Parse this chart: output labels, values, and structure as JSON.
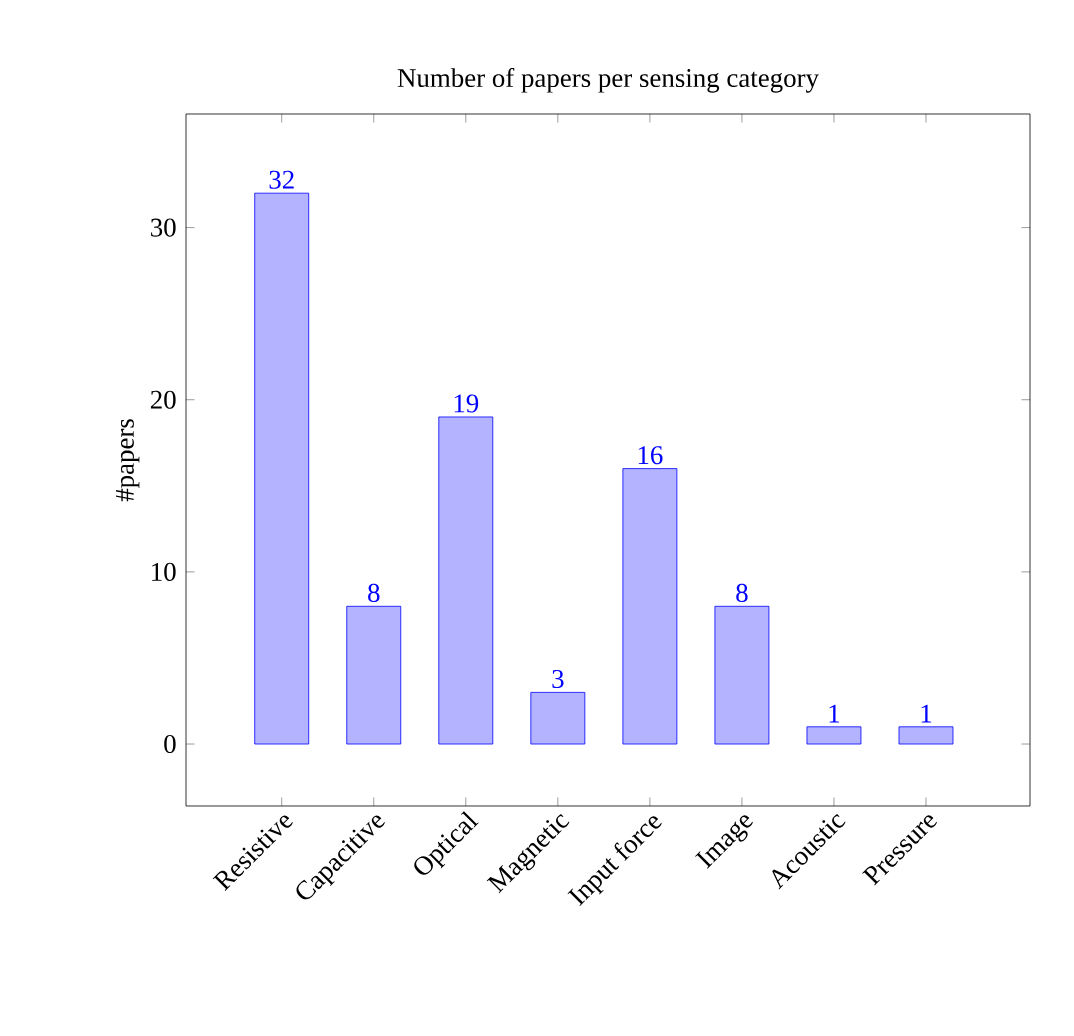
{
  "chart_data": {
    "type": "bar",
    "title": "Number of papers per sensing category",
    "ylabel": "#papers",
    "categories": [
      "Resistive",
      "Capacitive",
      "Optical",
      "Magnetic",
      "Input force",
      "Image",
      "Acoustic",
      "Pressure"
    ],
    "values": [
      32,
      8,
      19,
      3,
      16,
      8,
      1,
      1
    ],
    "color": "#b3b3ff",
    "ylim": [
      -3.6,
      36.6
    ],
    "yticks": [
      0,
      10,
      20,
      30
    ],
    "data_labels": true
  }
}
